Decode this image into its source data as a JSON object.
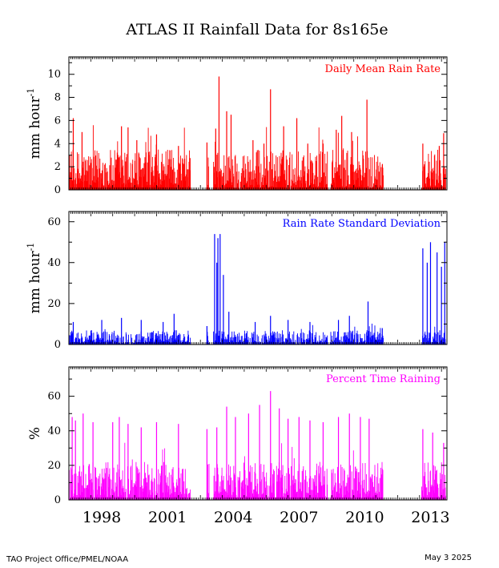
{
  "title": "ATLAS II Rainfall Data for 8s165e",
  "footer": {
    "left": "TAO Project Office/PMEL/NOAA",
    "right": "May  3 2025"
  },
  "chart_data": [
    {
      "type": "bar",
      "title": "Daily Mean Rain Rate",
      "ylabel": "mm hour",
      "ylabel_superscript": "-1",
      "color": "#ff0000",
      "ylim": [
        0,
        11.5
      ],
      "yticks": [
        0,
        2,
        4,
        6,
        8,
        10
      ],
      "xlim": [
        1997.0,
        2014.25
      ],
      "xticks": [
        1998,
        2001,
        2004,
        2007,
        2010,
        2013
      ],
      "data_segments": [
        [
          1997.0,
          2002.55
        ],
        [
          2003.3,
          2003.4
        ],
        [
          2003.6,
          2008.8
        ],
        [
          2008.95,
          2011.35
        ],
        [
          2013.1,
          2014.2
        ]
      ],
      "typical_max": 3.5,
      "peaks": [
        [
          1997.2,
          6.2
        ],
        [
          1997.6,
          5.0
        ],
        [
          1999.4,
          5.5
        ],
        [
          1999.7,
          5.4
        ],
        [
          2000.1,
          4.3
        ],
        [
          2001.0,
          4.8
        ],
        [
          2002.0,
          3.8
        ],
        [
          2003.3,
          4.1
        ],
        [
          2003.7,
          5.3
        ],
        [
          2003.85,
          9.8
        ],
        [
          2004.2,
          6.8
        ],
        [
          2004.4,
          6.5
        ],
        [
          2005.4,
          4.3
        ],
        [
          2005.9,
          4.0
        ],
        [
          2006.2,
          8.7
        ],
        [
          2006.8,
          5.5
        ],
        [
          2007.4,
          6.2
        ],
        [
          2007.9,
          4.0
        ],
        [
          2008.6,
          4.0
        ],
        [
          2009.2,
          5.2
        ],
        [
          2009.45,
          6.4
        ],
        [
          2009.9,
          5.0
        ],
        [
          2010.6,
          7.8
        ],
        [
          2011.3,
          2.2
        ],
        [
          2013.15,
          4.0
        ],
        [
          2013.9,
          3.8
        ],
        [
          2014.1,
          4.9
        ]
      ]
    },
    {
      "type": "bar",
      "title": "Rain Rate Standard Deviation",
      "ylabel": "mm hour",
      "ylabel_superscript": "-1",
      "color": "#0000ff",
      "ylim": [
        0,
        65
      ],
      "yticks": [
        0,
        20,
        40,
        60
      ],
      "xlim": [
        1997.0,
        2014.25
      ],
      "xticks": [
        1998,
        2001,
        2004,
        2007,
        2010,
        2013
      ],
      "data_segments": [
        [
          1997.0,
          2002.55
        ],
        [
          2003.3,
          2003.4
        ],
        [
          2003.6,
          2008.8
        ],
        [
          2008.95,
          2011.35
        ],
        [
          2013.1,
          2014.2
        ]
      ],
      "typical_max": 7,
      "peaks": [
        [
          1997.2,
          11
        ],
        [
          1998.5,
          12
        ],
        [
          1999.4,
          13
        ],
        [
          2000.3,
          12
        ],
        [
          2001.3,
          11
        ],
        [
          2001.8,
          15
        ],
        [
          2003.3,
          9
        ],
        [
          2003.65,
          54
        ],
        [
          2003.75,
          40
        ],
        [
          2003.8,
          52
        ],
        [
          2003.9,
          54
        ],
        [
          2004.05,
          34
        ],
        [
          2004.3,
          16
        ],
        [
          2005.5,
          11
        ],
        [
          2006.2,
          14
        ],
        [
          2007.0,
          12
        ],
        [
          2008.0,
          11
        ],
        [
          2009.3,
          12
        ],
        [
          2009.8,
          14
        ],
        [
          2010.65,
          21
        ],
        [
          2011.3,
          8
        ],
        [
          2013.15,
          47
        ],
        [
          2013.35,
          40
        ],
        [
          2013.5,
          50
        ],
        [
          2013.8,
          45
        ],
        [
          2014.0,
          38
        ],
        [
          2014.15,
          50
        ]
      ]
    },
    {
      "type": "bar",
      "title": "Percent Time Raining",
      "ylabel": "%",
      "ylabel_superscript": "",
      "color": "#ff00ff",
      "ylim": [
        0,
        77
      ],
      "yticks": [
        0,
        20,
        40,
        60
      ],
      "xlim": [
        1997.0,
        2014.25
      ],
      "xticks": [
        1998,
        2001,
        2004,
        2007,
        2010,
        2013
      ],
      "data_segments": [
        [
          1997.0,
          2002.55
        ],
        [
          2003.3,
          2003.4
        ],
        [
          2003.6,
          2008.8
        ],
        [
          2008.95,
          2011.35
        ],
        [
          2013.1,
          2014.2
        ]
      ],
      "typical_max": 22,
      "peaks": [
        [
          1997.15,
          48
        ],
        [
          1997.3,
          46
        ],
        [
          1997.65,
          50
        ],
        [
          1998.1,
          45
        ],
        [
          1999.0,
          45
        ],
        [
          1999.3,
          48
        ],
        [
          1999.7,
          44
        ],
        [
          2000.3,
          42
        ],
        [
          2001.0,
          45
        ],
        [
          2002.0,
          44
        ],
        [
          2003.3,
          41
        ],
        [
          2003.75,
          42
        ],
        [
          2004.2,
          54
        ],
        [
          2004.6,
          48
        ],
        [
          2005.2,
          50
        ],
        [
          2005.7,
          55
        ],
        [
          2006.2,
          63
        ],
        [
          2006.6,
          53
        ],
        [
          2007.0,
          47
        ],
        [
          2007.5,
          48
        ],
        [
          2008.0,
          46
        ],
        [
          2008.6,
          45
        ],
        [
          2009.3,
          48
        ],
        [
          2009.8,
          50
        ],
        [
          2010.3,
          48
        ],
        [
          2010.7,
          47
        ],
        [
          2011.3,
          18
        ],
        [
          2013.15,
          41
        ],
        [
          2013.6,
          39
        ],
        [
          2014.1,
          33
        ]
      ]
    }
  ]
}
